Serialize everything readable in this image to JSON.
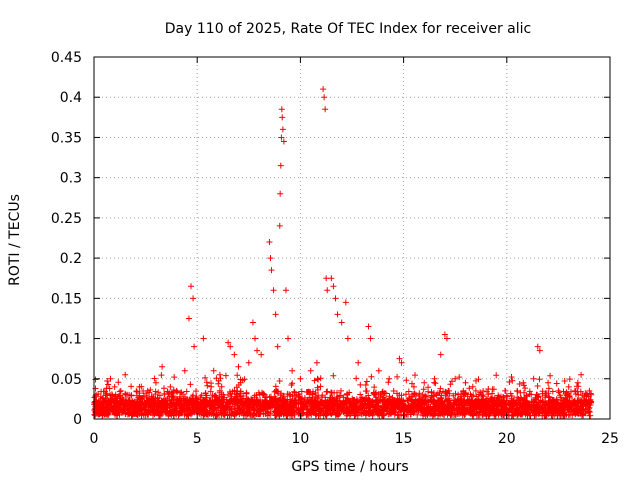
{
  "chart_data": {
    "type": "scatter",
    "title": "Day 110 of 2025, Rate Of TEC Index for receiver alic",
    "xlabel": "GPS time / hours",
    "ylabel": "ROTI / TECUs",
    "xlim": [
      0,
      25
    ],
    "ylim": [
      0,
      0.45
    ],
    "xticks": [
      0,
      5,
      10,
      15,
      20,
      25
    ],
    "yticks": [
      0,
      0.05,
      0.1,
      0.15,
      0.2,
      0.25,
      0.3,
      0.35,
      0.4,
      0.45
    ],
    "xtick_labels": [
      "0",
      "5",
      "10",
      "15",
      "20",
      "25"
    ],
    "ytick_labels": [
      "0",
      "0.05",
      "0.1",
      "0.15",
      "0.2",
      "0.25",
      "0.3",
      "0.35",
      "0.4",
      "0.45"
    ],
    "grid": true,
    "marker": "+",
    "color": "#ff0000",
    "series": [
      {
        "name": "ROTI",
        "x": [
          0.1,
          0.4,
          0.8,
          1.0,
          1.3,
          1.7,
          2.2,
          2.6,
          3.0,
          3.3,
          3.7,
          4.0,
          4.4,
          4.6,
          4.7,
          4.8,
          4.85,
          5.3,
          5.8,
          6.1,
          6.5,
          6.6,
          6.8,
          7.0,
          7.5,
          7.7,
          7.8,
          7.9,
          8.1,
          8.5,
          8.55,
          8.6,
          8.7,
          8.8,
          8.9,
          9.0,
          9.02,
          9.05,
          9.08,
          9.1,
          9.12,
          9.15,
          9.2,
          9.3,
          9.4,
          9.6,
          10.0,
          10.5,
          10.8,
          11.1,
          11.15,
          11.2,
          11.25,
          11.3,
          11.5,
          11.6,
          11.7,
          11.8,
          12.0,
          12.2,
          12.3,
          12.8,
          13.3,
          13.4,
          13.8,
          14.3,
          14.8,
          14.9,
          15.5,
          16.0,
          16.5,
          16.8,
          17.0,
          17.1,
          17.5,
          18.0,
          18.5,
          19.0,
          19.5,
          20.0,
          20.5,
          20.8,
          21.3,
          21.5,
          21.6,
          22.0,
          22.5,
          23.0,
          23.3,
          23.6,
          24.0
        ],
        "y": [
          0.03,
          0.025,
          0.05,
          0.04,
          0.035,
          0.03,
          0.04,
          0.035,
          0.045,
          0.065,
          0.04,
          0.035,
          0.06,
          0.125,
          0.165,
          0.15,
          0.09,
          0.1,
          0.06,
          0.055,
          0.095,
          0.09,
          0.08,
          0.065,
          0.07,
          0.12,
          0.1,
          0.085,
          0.08,
          0.22,
          0.2,
          0.185,
          0.16,
          0.13,
          0.09,
          0.24,
          0.28,
          0.315,
          0.35,
          0.385,
          0.375,
          0.36,
          0.345,
          0.16,
          0.1,
          0.06,
          0.05,
          0.06,
          0.07,
          0.41,
          0.4,
          0.385,
          0.175,
          0.16,
          0.175,
          0.165,
          0.15,
          0.13,
          0.12,
          0.145,
          0.1,
          0.07,
          0.115,
          0.1,
          0.06,
          0.05,
          0.075,
          0.07,
          0.04,
          0.045,
          0.05,
          0.08,
          0.105,
          0.1,
          0.05,
          0.045,
          0.035,
          0.025,
          0.02,
          0.02,
          0.035,
          0.045,
          0.05,
          0.09,
          0.085,
          0.045,
          0.035,
          0.04,
          0.035,
          0.055,
          0.035
        ]
      }
    ]
  }
}
